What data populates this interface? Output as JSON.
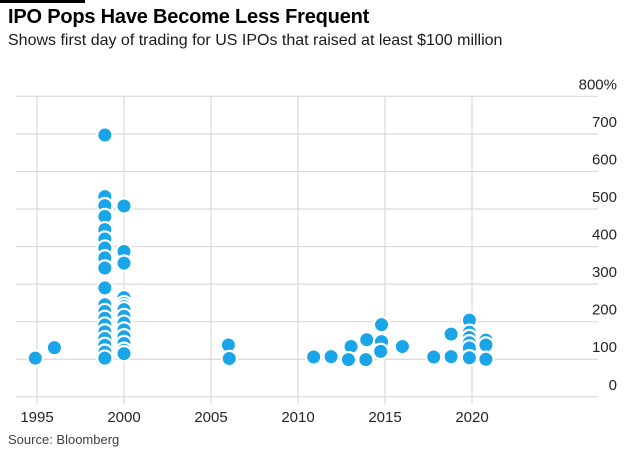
{
  "header": {
    "title": "IPO Pops Have Become Less Frequent",
    "subtitle": "Shows first day of trading for US IPOs that raised at least $100 million"
  },
  "footer": {
    "source": "Source: Bloomberg"
  },
  "colors": {
    "background": "#ffffff",
    "flag": "#000000",
    "dot": "#19A5E8",
    "dot_stroke": "#ffffff",
    "grid": "#d9d9d9",
    "tick_label": "#262626",
    "title": "#000000",
    "subtitle": "#1a1a1a",
    "source": "#3f3f3f"
  },
  "chart_data": {
    "type": "scatter",
    "title": "IPO Pops Have Become Less Frequent",
    "subtitle": "Shows first day of trading for US IPOs that raised at least $100 million",
    "xlabel": "",
    "ylabel": "",
    "grid": true,
    "legend": false,
    "xlim": [
      1993.7,
      2027
    ],
    "ylim": [
      0,
      800
    ],
    "x_ticks": [
      1995,
      2000,
      2005,
      2010,
      2015,
      2020
    ],
    "x_tick_labels": [
      "1995",
      "2000",
      "2005",
      "2010",
      "2015",
      "2020"
    ],
    "y_ticks": [
      0,
      100,
      200,
      300,
      400,
      500,
      600,
      700,
      800
    ],
    "y_tick_labels": [
      "0",
      "100",
      "200",
      "300",
      "400",
      "500",
      "600",
      "700",
      "800%"
    ],
    "points": [
      {
        "x": 1994.9,
        "y": 103
      },
      {
        "x": 1996.0,
        "y": 131
      },
      {
        "x": 1998.9,
        "y": 697
      },
      {
        "x": 1998.9,
        "y": 533
      },
      {
        "x": 1998.9,
        "y": 509
      },
      {
        "x": 1998.9,
        "y": 480
      },
      {
        "x": 1998.9,
        "y": 445
      },
      {
        "x": 1998.9,
        "y": 420
      },
      {
        "x": 1998.9,
        "y": 396
      },
      {
        "x": 1998.9,
        "y": 370
      },
      {
        "x": 1998.9,
        "y": 343
      },
      {
        "x": 1998.9,
        "y": 290
      },
      {
        "x": 1998.9,
        "y": 245
      },
      {
        "x": 1998.9,
        "y": 227
      },
      {
        "x": 1998.9,
        "y": 209
      },
      {
        "x": 1998.9,
        "y": 191
      },
      {
        "x": 1998.9,
        "y": 173
      },
      {
        "x": 1998.9,
        "y": 155
      },
      {
        "x": 1998.9,
        "y": 137
      },
      {
        "x": 1998.9,
        "y": 119
      },
      {
        "x": 1998.9,
        "y": 103
      },
      {
        "x": 2000.0,
        "y": 508
      },
      {
        "x": 2000.0,
        "y": 387
      },
      {
        "x": 2000.0,
        "y": 356
      },
      {
        "x": 2000.0,
        "y": 264
      },
      {
        "x": 2000.0,
        "y": 248
      },
      {
        "x": 2000.0,
        "y": 240
      },
      {
        "x": 2000.0,
        "y": 232
      },
      {
        "x": 2000.0,
        "y": 214
      },
      {
        "x": 2000.0,
        "y": 196
      },
      {
        "x": 2000.0,
        "y": 178
      },
      {
        "x": 2000.0,
        "y": 160
      },
      {
        "x": 2000.0,
        "y": 142
      },
      {
        "x": 2000.0,
        "y": 124
      },
      {
        "x": 2000.0,
        "y": 115
      },
      {
        "x": 2006.0,
        "y": 138
      },
      {
        "x": 2006.05,
        "y": 102
      },
      {
        "x": 2010.9,
        "y": 106
      },
      {
        "x": 2011.9,
        "y": 107
      },
      {
        "x": 2012.9,
        "y": 99
      },
      {
        "x": 2013.05,
        "y": 134
      },
      {
        "x": 2013.9,
        "y": 99
      },
      {
        "x": 2013.95,
        "y": 152
      },
      {
        "x": 2014.75,
        "y": 121
      },
      {
        "x": 2014.8,
        "y": 192
      },
      {
        "x": 2014.8,
        "y": 147
      },
      {
        "x": 2016.0,
        "y": 134
      },
      {
        "x": 2017.8,
        "y": 106
      },
      {
        "x": 2018.8,
        "y": 167
      },
      {
        "x": 2018.8,
        "y": 107
      },
      {
        "x": 2019.85,
        "y": 204
      },
      {
        "x": 2019.85,
        "y": 172
      },
      {
        "x": 2019.85,
        "y": 158
      },
      {
        "x": 2019.85,
        "y": 144
      },
      {
        "x": 2019.85,
        "y": 130
      },
      {
        "x": 2019.85,
        "y": 104
      },
      {
        "x": 2020.8,
        "y": 151
      },
      {
        "x": 2020.8,
        "y": 138
      },
      {
        "x": 2020.8,
        "y": 100
      }
    ]
  }
}
